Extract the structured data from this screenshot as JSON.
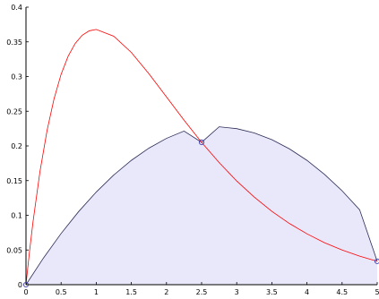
{
  "chart_data": {
    "type": "line",
    "title": "",
    "xlabel": "",
    "ylabel": "",
    "xlim": [
      0,
      5
    ],
    "ylim": [
      0,
      0.4
    ],
    "grid": false,
    "x_ticks": [
      0,
      0.5,
      1,
      1.5,
      2,
      2.5,
      3,
      3.5,
      4,
      4.5,
      5
    ],
    "x_tick_labels": [
      "0",
      "0.5",
      "1",
      "1.5",
      "2",
      "2.5",
      "3",
      "3.5",
      "4",
      "4.5",
      "5"
    ],
    "y_ticks": [
      0,
      0.05,
      0.1,
      0.15,
      0.2,
      0.25,
      0.3,
      0.35,
      0.4
    ],
    "y_tick_labels": [
      "0",
      "0.05",
      "0.1",
      "0.15",
      "0.2",
      "0.25",
      "0.3",
      "0.35",
      "0.4"
    ],
    "series": [
      {
        "color": "#ff0000",
        "style": "line",
        "x": [
          0,
          0.05,
          0.1,
          0.2,
          0.3,
          0.4,
          0.5,
          0.6,
          0.7,
          0.8,
          0.9,
          1.0,
          1.25,
          1.5,
          1.75,
          2.0,
          2.25,
          2.5,
          2.75,
          3.0,
          3.25,
          3.5,
          3.75,
          4.0,
          4.25,
          4.5,
          4.75,
          5.0
        ],
        "y": [
          0,
          0.0476,
          0.0905,
          0.1637,
          0.2222,
          0.2681,
          0.3033,
          0.3293,
          0.3476,
          0.3595,
          0.3659,
          0.3679,
          0.3581,
          0.3347,
          0.3041,
          0.2707,
          0.2371,
          0.2052,
          0.176,
          0.1494,
          0.1262,
          0.1057,
          0.0882,
          0.0733,
          0.0605,
          0.05,
          0.0411,
          0.0337
        ]
      },
      {
        "color": "#2b2b55",
        "fill": "#e8e8fa",
        "style": "area",
        "x": [
          0,
          0.25,
          0.5,
          0.75,
          1.0,
          1.25,
          1.5,
          1.75,
          2.0,
          2.25,
          2.5,
          2.75,
          3.0,
          3.25,
          3.5,
          3.75,
          4.0,
          4.25,
          4.5,
          4.75,
          5.0
        ],
        "y": [
          0,
          0.0386,
          0.0738,
          0.1054,
          0.1335,
          0.1581,
          0.1792,
          0.1968,
          0.2109,
          0.2214,
          0.2052,
          0.2276,
          0.2249,
          0.2187,
          0.209,
          0.1958,
          0.1792,
          0.159,
          0.1353,
          0.108,
          0.0337
        ]
      }
    ],
    "markers": [
      {
        "x": 0,
        "y": 0
      },
      {
        "x": 2.5,
        "y": 0.2052
      },
      {
        "x": 5,
        "y": 0.0337
      }
    ]
  }
}
